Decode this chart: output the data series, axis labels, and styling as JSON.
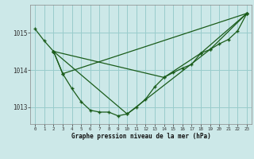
{
  "xlabel": "Graphe pression niveau de la mer (hPa)",
  "background_color": "#cce8e8",
  "grid_color": "#99cccc",
  "line_color": "#1a5c1a",
  "ylim": [
    1012.55,
    1015.75
  ],
  "xlim": [
    -0.5,
    23.5
  ],
  "yticks": [
    1013,
    1014,
    1015
  ],
  "xticks": [
    0,
    1,
    2,
    3,
    4,
    5,
    6,
    7,
    8,
    9,
    10,
    11,
    12,
    13,
    14,
    15,
    16,
    17,
    18,
    19,
    20,
    21,
    22,
    23
  ],
  "series1": {
    "x": [
      0,
      1,
      2,
      3,
      4,
      5,
      6,
      7,
      8,
      9,
      10,
      11,
      12,
      13,
      14,
      15,
      16,
      17,
      18,
      19,
      20,
      21,
      22,
      23
    ],
    "y": [
      1015.1,
      1014.78,
      1014.5,
      1013.9,
      1013.5,
      1013.15,
      1012.92,
      1012.87,
      1012.87,
      1012.77,
      1012.82,
      1013.0,
      1013.22,
      1013.55,
      1013.8,
      1013.93,
      1014.05,
      1014.15,
      1014.45,
      1014.55,
      1014.7,
      1014.82,
      1015.05,
      1015.52
    ]
  },
  "series2": {
    "x": [
      2,
      3,
      23
    ],
    "y": [
      1014.5,
      1013.9,
      1015.52
    ]
  },
  "series3": {
    "x": [
      2,
      10,
      19,
      23
    ],
    "y": [
      1014.5,
      1012.82,
      1014.55,
      1015.52
    ]
  },
  "series4": {
    "x": [
      2,
      14,
      18,
      23
    ],
    "y": [
      1014.5,
      1013.8,
      1014.45,
      1015.52
    ]
  }
}
